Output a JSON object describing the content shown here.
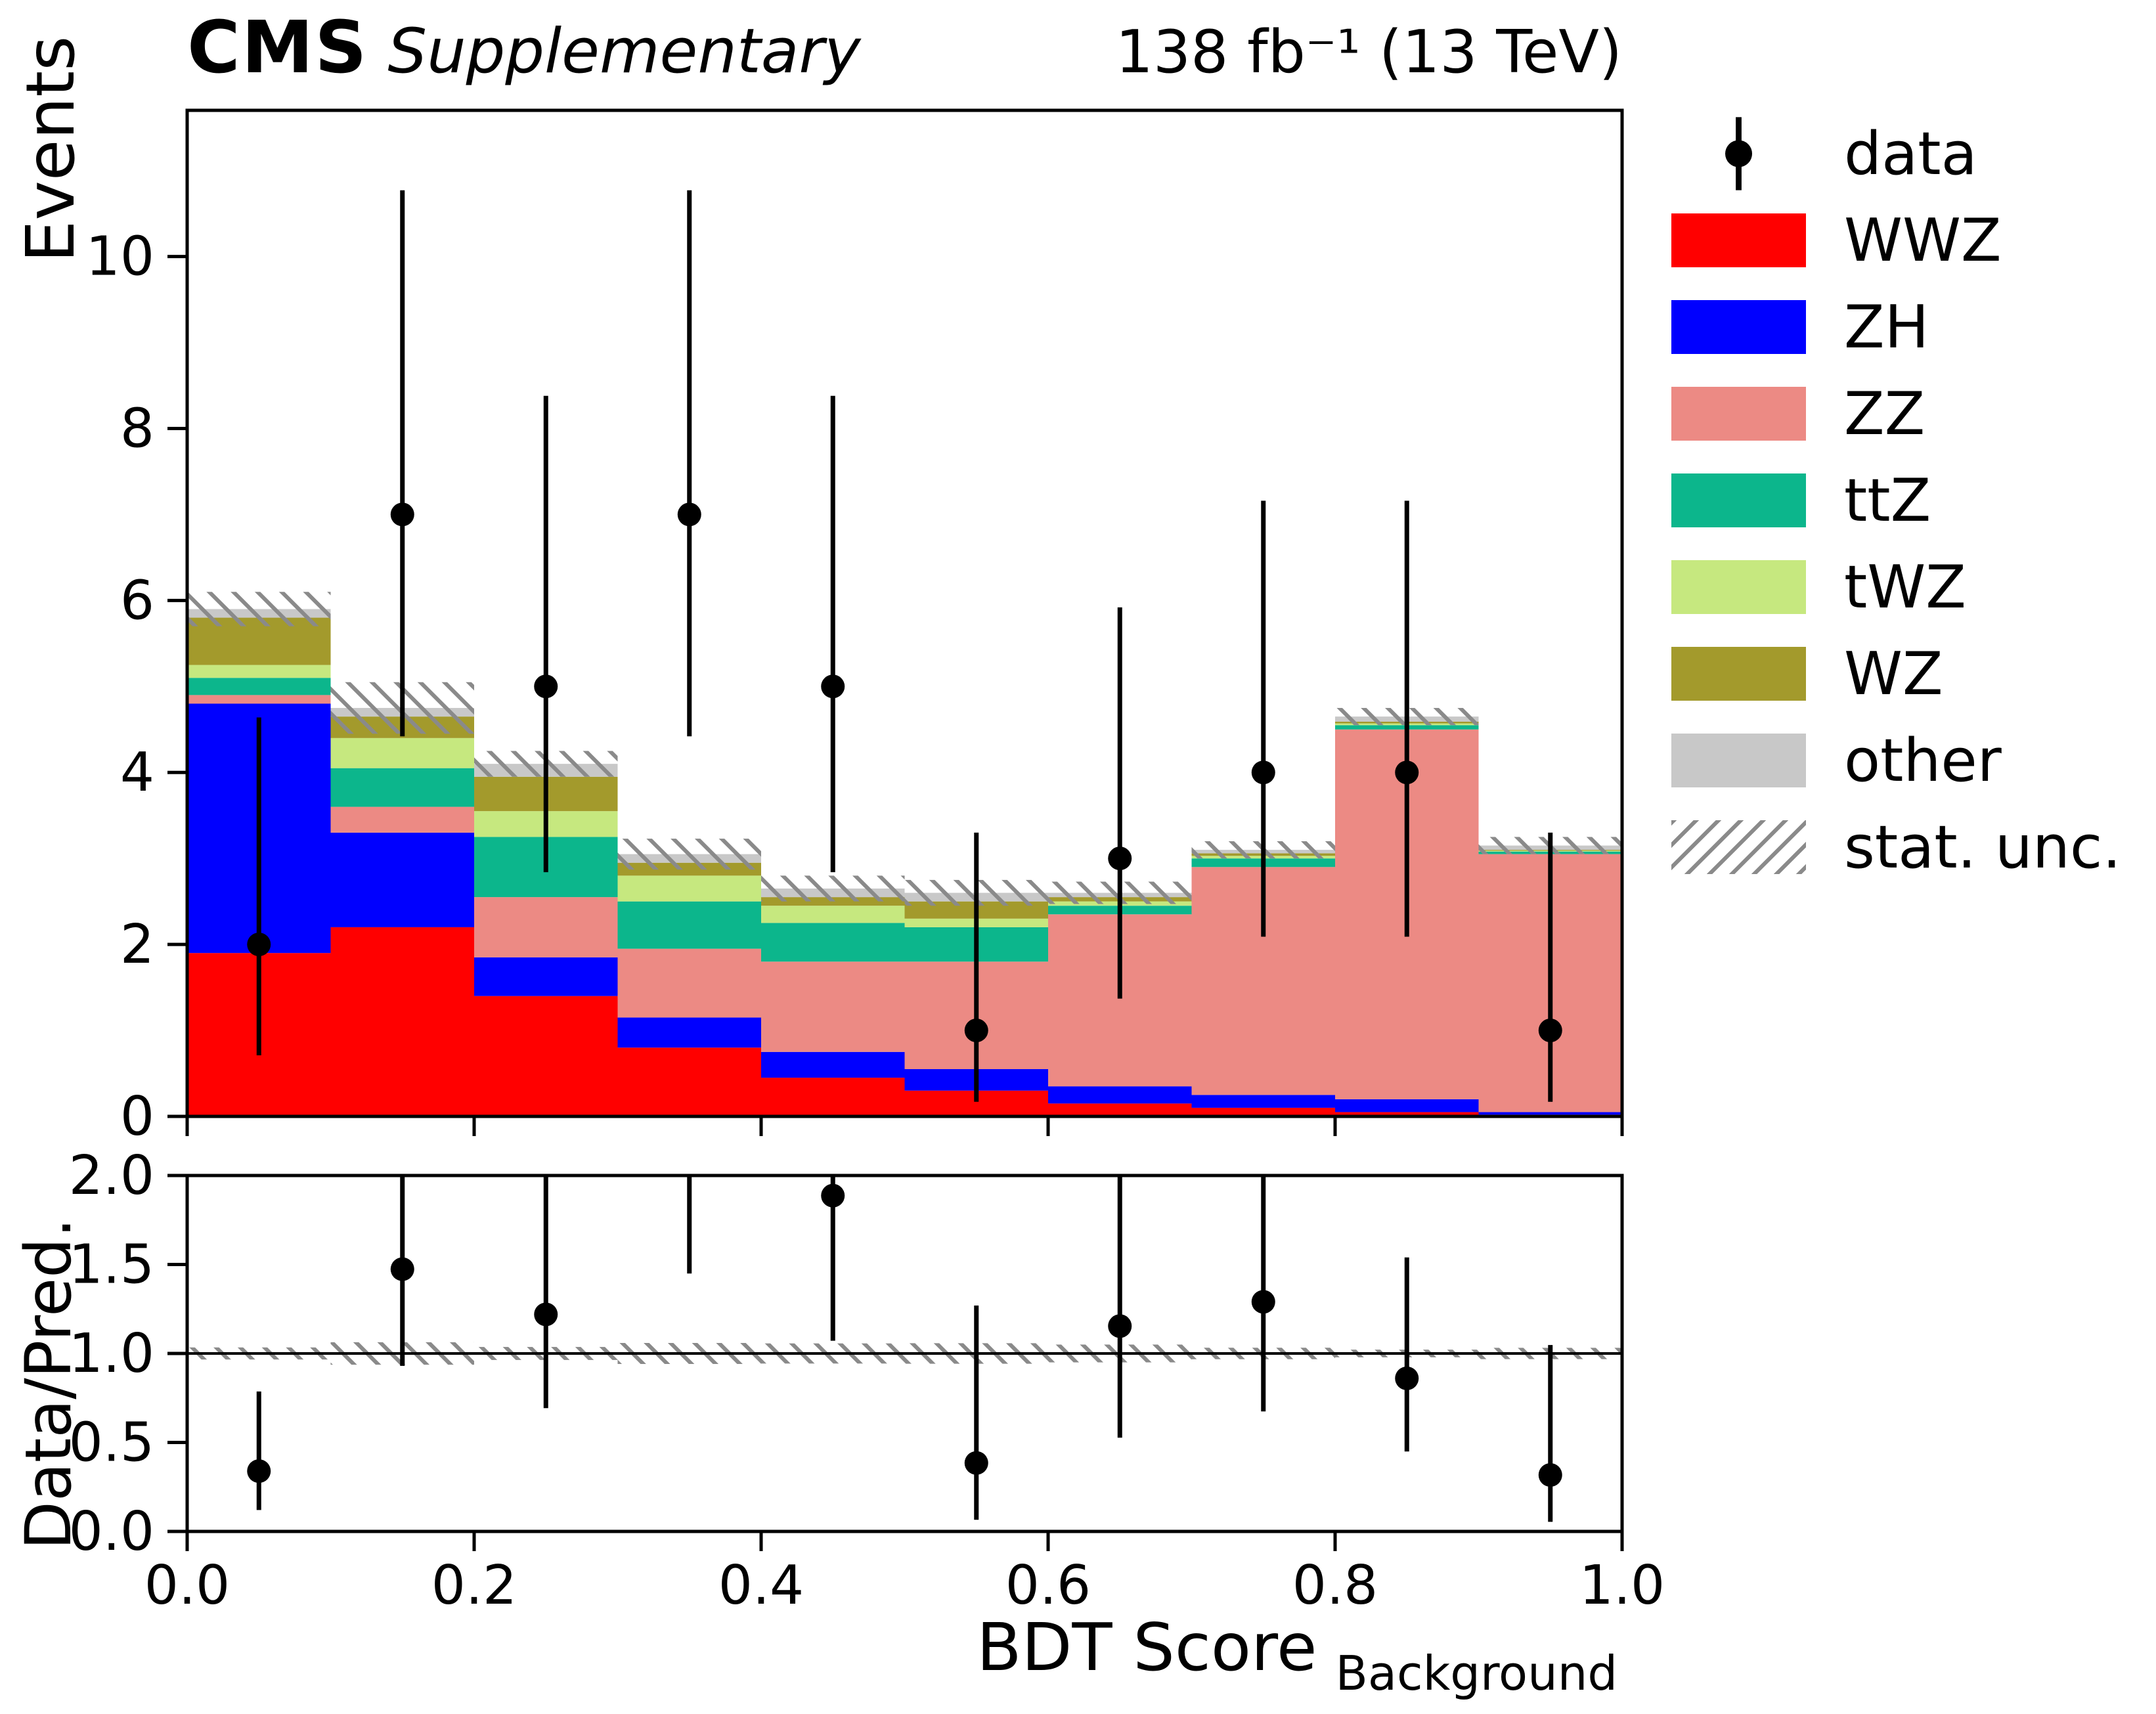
{
  "header": {
    "experiment": "CMS",
    "label": "Supplementary",
    "lumi": "138 fb⁻¹ (13 TeV)"
  },
  "chart_data": {
    "type": "stacked-histogram-with-ratio",
    "bin_edges": [
      0.0,
      0.1,
      0.2,
      0.3,
      0.4,
      0.5,
      0.6,
      0.7,
      0.8,
      0.9,
      1.0
    ],
    "x": {
      "label": "BDT Score",
      "label_sub": "Background",
      "lim": [
        0.0,
        1.0
      ],
      "ticks": [
        0.0,
        0.2,
        0.4,
        0.6,
        0.8,
        1.0
      ],
      "tick_labels": [
        "0.0",
        "0.2",
        "0.4",
        "0.6",
        "0.8",
        "1.0"
      ]
    },
    "top_panel": {
      "ylabel": "Events",
      "ylim": [
        0,
        11.7
      ],
      "yticks": [
        0,
        2,
        4,
        6,
        8,
        10
      ],
      "ytick_labels": [
        "0",
        "2",
        "4",
        "6",
        "8",
        "10"
      ],
      "grid": false
    },
    "ratio_panel": {
      "ylabel": "Data/Pred.",
      "ylim": [
        0.0,
        2.0
      ],
      "yticks": [
        0.0,
        0.5,
        1.0,
        1.5,
        2.0
      ],
      "ytick_labels": [
        "0.0",
        "0.5",
        "1.0",
        "1.5",
        "2.0"
      ],
      "reference_line": 1.0
    },
    "series": [
      {
        "name": "WWZ",
        "color": "#ff0000",
        "values": [
          1.9,
          2.2,
          1.4,
          0.8,
          0.45,
          0.3,
          0.15,
          0.1,
          0.05,
          0.02
        ]
      },
      {
        "name": "ZH",
        "color": "#0000ff",
        "values": [
          2.9,
          1.1,
          0.45,
          0.35,
          0.3,
          0.25,
          0.2,
          0.15,
          0.15,
          0.03
        ]
      },
      {
        "name": "ZZ",
        "color": "#ec8a84",
        "values": [
          0.1,
          0.3,
          0.7,
          0.8,
          1.05,
          1.25,
          2.0,
          2.65,
          4.3,
          3.0
        ]
      },
      {
        "name": "ttZ",
        "color": "#0cb68c",
        "values": [
          0.2,
          0.45,
          0.7,
          0.55,
          0.45,
          0.4,
          0.1,
          0.1,
          0.05,
          0.03
        ]
      },
      {
        "name": "tWZ",
        "color": "#c6e87f",
        "values": [
          0.15,
          0.35,
          0.3,
          0.3,
          0.2,
          0.1,
          0.05,
          0.03,
          0.02,
          0.01
        ]
      },
      {
        "name": "WZ",
        "color": "#a39a2c",
        "values": [
          0.55,
          0.25,
          0.4,
          0.15,
          0.1,
          0.2,
          0.05,
          0.03,
          0.02,
          0.01
        ]
      },
      {
        "name": "other",
        "color": "#c8c8c8",
        "values": [
          0.1,
          0.1,
          0.15,
          0.1,
          0.1,
          0.1,
          0.05,
          0.04,
          0.06,
          0.05
        ]
      }
    ],
    "stat_unc": {
      "label": "stat. unc.",
      "hatch_color": "#8a8a8a",
      "half_width": [
        0.2,
        0.3,
        0.15,
        0.18,
        0.15,
        0.15,
        0.13,
        0.1,
        0.1,
        0.1
      ]
    },
    "data_points": {
      "label": "data",
      "color": "#000000",
      "values": [
        2,
        7,
        5,
        7,
        5,
        1,
        3,
        4,
        4,
        1
      ],
      "err_lo": [
        1.29,
        2.58,
        2.16,
        2.58,
        2.16,
        0.83,
        1.63,
        1.91,
        1.91,
        0.83
      ],
      "err_hi": [
        2.64,
        3.77,
        3.38,
        3.77,
        3.38,
        2.3,
        2.92,
        3.16,
        3.16,
        2.3
      ]
    }
  },
  "legend": {
    "items": [
      {
        "label": "data",
        "type": "marker",
        "color": "#000000"
      },
      {
        "label": "WWZ",
        "type": "box",
        "color": "#ff0000"
      },
      {
        "label": "ZH",
        "type": "box",
        "color": "#0000ff"
      },
      {
        "label": "ZZ",
        "type": "box",
        "color": "#ec8a84"
      },
      {
        "label": "ttZ",
        "type": "box",
        "color": "#0cb68c"
      },
      {
        "label": "tWZ",
        "type": "box",
        "color": "#c6e87f"
      },
      {
        "label": "WZ",
        "type": "box",
        "color": "#a39a2c"
      },
      {
        "label": "other",
        "type": "box",
        "color": "#c8c8c8"
      },
      {
        "label": "stat. unc.",
        "type": "hatch",
        "color": "#8a8a8a"
      }
    ]
  }
}
